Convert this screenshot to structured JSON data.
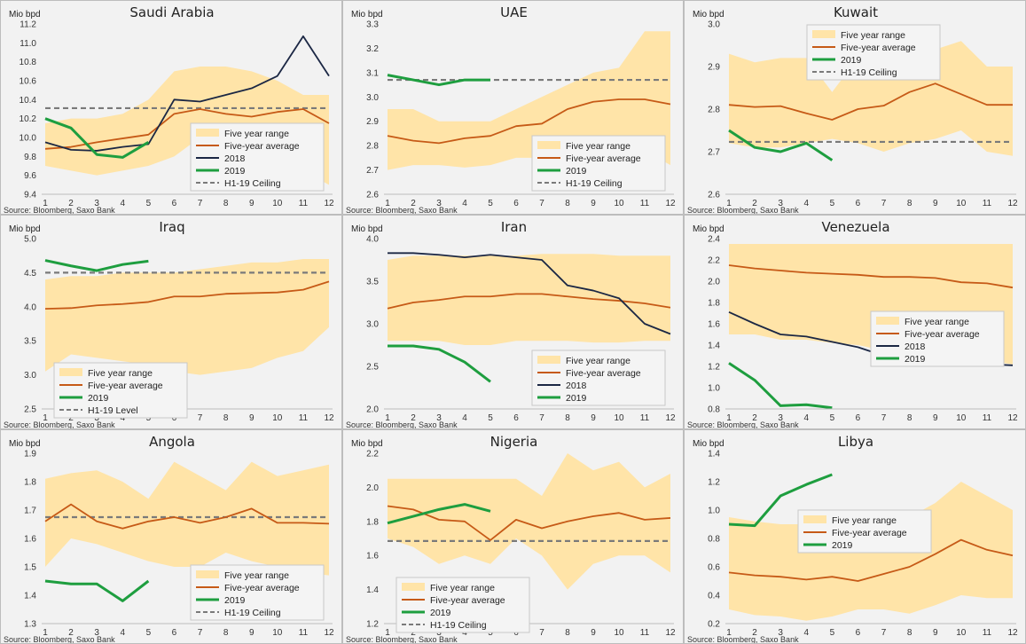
{
  "colors": {
    "range": "#ffe4a8",
    "avg": "#c65a17",
    "y2018": "#1b2744",
    "y2019": "#1e9e3f",
    "ceiling": "#7a7a7a"
  },
  "charts": [
    {
      "title": "Saudi Arabia",
      "ylabel": "Mio bpd",
      "ylim": [
        9.4,
        11.2
      ],
      "yticks": [
        "9.4",
        "9.6",
        "9.8",
        "10.0",
        "10.2",
        "10.4",
        "10.6",
        "10.8",
        "11.0",
        "11.2"
      ],
      "x": [
        1,
        2,
        3,
        4,
        5,
        6,
        7,
        8,
        9,
        10,
        11,
        12
      ],
      "source": "Source: Bloomberg, Saxo Bank",
      "legend": {
        "pos": "bottom-right",
        "entries": [
          {
            "key": "range",
            "label": "Five year range"
          },
          {
            "key": "avg",
            "label": "Five-year average"
          },
          {
            "key": "y2018",
            "label": "2018"
          },
          {
            "key": "y2019",
            "label": "2019"
          },
          {
            "key": "ceiling",
            "label": "H1-19 Ceiling"
          }
        ]
      },
      "range_low": [
        9.7,
        9.65,
        9.6,
        9.65,
        9.7,
        9.8,
        10.0,
        10.0,
        9.95,
        9.95,
        9.65,
        9.5
      ],
      "range_high": [
        10.15,
        10.2,
        10.2,
        10.25,
        10.4,
        10.7,
        10.75,
        10.75,
        10.7,
        10.6,
        10.45,
        10.45
      ],
      "avg": [
        9.88,
        9.9,
        9.95,
        9.99,
        10.03,
        10.25,
        10.3,
        10.25,
        10.22,
        10.27,
        10.3,
        10.15
      ],
      "y2018": [
        9.95,
        9.87,
        9.86,
        9.9,
        9.93,
        10.4,
        10.38,
        10.45,
        10.52,
        10.65,
        11.07,
        10.65
      ],
      "y2019": [
        10.2,
        10.1,
        9.82,
        9.79,
        9.95
      ],
      "ceiling": 10.31
    },
    {
      "title": "UAE",
      "ylabel": "Mio bpd",
      "ylim": [
        2.6,
        3.3
      ],
      "yticks": [
        "2.6",
        "2.7",
        "2.8",
        "2.9",
        "3.0",
        "3.1",
        "3.2",
        "3.3"
      ],
      "x": [
        1,
        2,
        3,
        4,
        5,
        6,
        7,
        8,
        9,
        10,
        11,
        12
      ],
      "source": "Source: Bloomberg, Saxo Bank",
      "legend": {
        "pos": "bottom-right",
        "entries": [
          {
            "key": "range",
            "label": "Five year range"
          },
          {
            "key": "avg",
            "label": "Five-year average"
          },
          {
            "key": "y2019",
            "label": "2019"
          },
          {
            "key": "ceiling",
            "label": "H1-19 Ceiling"
          }
        ]
      },
      "range_low": [
        2.7,
        2.72,
        2.72,
        2.71,
        2.72,
        2.75,
        2.75,
        2.78,
        2.82,
        2.8,
        2.78,
        2.72
      ],
      "range_high": [
        2.95,
        2.95,
        2.9,
        2.9,
        2.9,
        2.95,
        3.0,
        3.05,
        3.1,
        3.12,
        3.27,
        3.27
      ],
      "avg": [
        2.84,
        2.82,
        2.81,
        2.83,
        2.84,
        2.88,
        2.89,
        2.95,
        2.98,
        2.99,
        2.99,
        2.97
      ],
      "y2019": [
        3.09,
        3.07,
        3.05,
        3.07,
        3.07
      ],
      "ceiling": 3.07
    },
    {
      "title": "Kuwait",
      "ylabel": "Mio bpd",
      "ylim": [
        2.6,
        3.0
      ],
      "yticks": [
        "2.6",
        "2.7",
        "2.8",
        "2.9",
        "3.0"
      ],
      "x": [
        1,
        2,
        3,
        4,
        5,
        6,
        7,
        8,
        9,
        10,
        11,
        12
      ],
      "source": "Source: Bloomberg, Saxo Bank",
      "legend": {
        "pos": "top-center",
        "entries": [
          {
            "key": "range",
            "label": "Five year range"
          },
          {
            "key": "avg",
            "label": "Five-year average"
          },
          {
            "key": "y2019",
            "label": "2019"
          },
          {
            "key": "ceiling",
            "label": "H1-19 Ceiling"
          }
        ]
      },
      "range_low": [
        2.72,
        2.71,
        2.71,
        2.72,
        2.73,
        2.72,
        2.7,
        2.72,
        2.73,
        2.75,
        2.7,
        2.69
      ],
      "range_high": [
        2.93,
        2.91,
        2.92,
        2.92,
        2.84,
        2.92,
        2.92,
        2.94,
        2.94,
        2.96,
        2.9,
        2.9
      ],
      "avg": [
        2.81,
        2.805,
        2.807,
        2.79,
        2.775,
        2.8,
        2.808,
        2.84,
        2.86,
        2.835,
        2.81,
        2.81
      ],
      "y2019": [
        2.75,
        2.71,
        2.7,
        2.72,
        2.68
      ],
      "ceiling": 2.723
    },
    {
      "title": "Iraq",
      "ylabel": "Mio bpd",
      "ylim": [
        2.5,
        5.0
      ],
      "yticks": [
        "2.5",
        "3.0",
        "3.5",
        "4.0",
        "4.5",
        "5.0"
      ],
      "x": [
        1,
        2,
        3,
        4,
        5,
        6,
        7,
        8,
        9,
        10,
        11,
        12
      ],
      "source": "Source: Bloomberg,  Saxo Bank",
      "legend": {
        "pos": "bottom-left",
        "entries": [
          {
            "key": "range",
            "label": "Five year range"
          },
          {
            "key": "avg",
            "label": "Five-year average"
          },
          {
            "key": "y2019",
            "label": "2019"
          },
          {
            "key": "ceiling",
            "label": "H1-19 Level"
          }
        ]
      },
      "range_low": [
        3.05,
        3.3,
        3.25,
        3.2,
        3.15,
        3.05,
        3.0,
        3.05,
        3.1,
        3.25,
        3.35,
        3.7
      ],
      "range_high": [
        4.4,
        4.45,
        4.45,
        4.5,
        4.5,
        4.5,
        4.55,
        4.6,
        4.65,
        4.65,
        4.7,
        4.7
      ],
      "avg": [
        3.97,
        3.98,
        4.02,
        4.04,
        4.07,
        4.15,
        4.15,
        4.19,
        4.2,
        4.21,
        4.25,
        4.37
      ],
      "y2019": [
        4.68,
        4.6,
        4.53,
        4.62,
        4.67
      ],
      "ceiling": 4.5
    },
    {
      "title": "Iran",
      "ylabel": "Mio bpd",
      "ylim": [
        2.0,
        4.0
      ],
      "yticks": [
        "2.0",
        "2.5",
        "3.0",
        "3.5",
        "4.0"
      ],
      "x": [
        1,
        2,
        3,
        4,
        5,
        6,
        7,
        8,
        9,
        10,
        11,
        12
      ],
      "source": "Source: Bloomberg, Saxo Bank",
      "legend": {
        "pos": "bottom-right",
        "entries": [
          {
            "key": "range",
            "label": "Five year range"
          },
          {
            "key": "avg",
            "label": "Five-year average"
          },
          {
            "key": "y2018",
            "label": "2018"
          },
          {
            "key": "y2019",
            "label": "2019"
          }
        ]
      },
      "range_low": [
        2.8,
        2.8,
        2.8,
        2.75,
        2.75,
        2.8,
        2.8,
        2.8,
        2.78,
        2.78,
        2.8,
        2.8
      ],
      "range_high": [
        3.75,
        3.8,
        3.8,
        3.8,
        3.8,
        3.8,
        3.82,
        3.82,
        3.82,
        3.8,
        3.8,
        3.8
      ],
      "avg": [
        3.18,
        3.25,
        3.28,
        3.32,
        3.32,
        3.35,
        3.35,
        3.32,
        3.29,
        3.27,
        3.24,
        3.19
      ],
      "y2018": [
        3.83,
        3.83,
        3.81,
        3.78,
        3.81,
        3.78,
        3.75,
        3.45,
        3.39,
        3.3,
        3.0,
        2.88
      ],
      "y2019": [
        2.74,
        2.74,
        2.7,
        2.55,
        2.32
      ]
    },
    {
      "title": "Venezuela",
      "ylabel": "Mio bpd",
      "ylim": [
        0.8,
        2.4
      ],
      "yticks": [
        "0.8",
        "1.0",
        "1.2",
        "1.4",
        "1.6",
        "1.8",
        "2.0",
        "2.2",
        "2.4"
      ],
      "x": [
        1,
        2,
        3,
        4,
        5,
        6,
        7,
        8,
        9,
        10,
        11,
        12
      ],
      "source": "Source: Bloomberg, Saxo Bank",
      "legend": {
        "pos": "right",
        "entries": [
          {
            "key": "range",
            "label": "Five year range"
          },
          {
            "key": "avg",
            "label": "Five-year average"
          },
          {
            "key": "y2018",
            "label": "2018"
          },
          {
            "key": "y2019",
            "label": "2019"
          }
        ]
      },
      "range_low": [
        1.5,
        1.5,
        1.45,
        1.45,
        1.42,
        1.4,
        1.35,
        1.35,
        1.3,
        1.25,
        1.25,
        1.22
      ],
      "range_high": [
        2.35,
        2.35,
        2.35,
        2.35,
        2.35,
        2.35,
        2.35,
        2.35,
        2.35,
        2.35,
        2.35,
        2.35
      ],
      "avg": [
        2.15,
        2.12,
        2.1,
        2.08,
        2.07,
        2.06,
        2.04,
        2.04,
        2.03,
        1.99,
        1.98,
        1.94
      ],
      "y2018": [
        1.71,
        1.6,
        1.5,
        1.48,
        1.43,
        1.38,
        1.3,
        1.32,
        1.25,
        1.21,
        1.22,
        1.21
      ],
      "y2019": [
        1.23,
        1.07,
        0.83,
        0.84,
        0.81
      ]
    },
    {
      "title": "Angola",
      "ylabel": "Mio bpd",
      "ylim": [
        1.3,
        1.9
      ],
      "yticks": [
        "1.3",
        "1.4",
        "1.5",
        "1.6",
        "1.7",
        "1.8",
        "1.9"
      ],
      "x": [
        1,
        2,
        3,
        4,
        5,
        6,
        7,
        8,
        9,
        10,
        11,
        12
      ],
      "source": "Source: Bloomberg, Saxo Bank",
      "legend": {
        "pos": "bottom-right",
        "entries": [
          {
            "key": "range",
            "label": "Five year range"
          },
          {
            "key": "avg",
            "label": "Five-year average"
          },
          {
            "key": "y2019",
            "label": "2019"
          },
          {
            "key": "ceiling",
            "label": "H1-19 Ceiling"
          }
        ]
      },
      "range_low": [
        1.5,
        1.6,
        1.58,
        1.55,
        1.52,
        1.5,
        1.5,
        1.55,
        1.52,
        1.5,
        1.48,
        1.47
      ],
      "range_high": [
        1.81,
        1.83,
        1.84,
        1.8,
        1.74,
        1.87,
        1.82,
        1.77,
        1.87,
        1.82,
        1.84,
        1.86
      ],
      "avg": [
        1.66,
        1.72,
        1.66,
        1.635,
        1.66,
        1.675,
        1.655,
        1.675,
        1.705,
        1.655,
        1.655,
        1.652
      ],
      "y2019": [
        1.45,
        1.44,
        1.44,
        1.38,
        1.45
      ],
      "ceiling": 1.675
    },
    {
      "title": "Nigeria",
      "ylabel": "Mio bpd",
      "ylim": [
        1.2,
        2.2
      ],
      "yticks": [
        "1.2",
        "1.4",
        "1.6",
        "1.8",
        "2.0",
        "2.2"
      ],
      "x": [
        1,
        2,
        3,
        4,
        5,
        6,
        7,
        8,
        9,
        10,
        11,
        12
      ],
      "source": "Source: Bloomberg, Saxo Bank",
      "legend": {
        "pos": "bottom-left",
        "entries": [
          {
            "key": "range",
            "label": "Five year range"
          },
          {
            "key": "avg",
            "label": "Five-year average"
          },
          {
            "key": "y2019",
            "label": "2019"
          },
          {
            "key": "ceiling",
            "label": "H1-19 Ceiling"
          }
        ]
      },
      "range_low": [
        1.7,
        1.65,
        1.55,
        1.6,
        1.55,
        1.7,
        1.6,
        1.4,
        1.55,
        1.6,
        1.6,
        1.5
      ],
      "range_high": [
        2.05,
        2.05,
        2.05,
        2.05,
        2.05,
        2.05,
        1.95,
        2.2,
        2.1,
        2.15,
        2.0,
        2.08
      ],
      "avg": [
        1.89,
        1.87,
        1.81,
        1.8,
        1.69,
        1.81,
        1.76,
        1.8,
        1.83,
        1.85,
        1.81,
        1.82
      ],
      "y2019": [
        1.79,
        1.83,
        1.87,
        1.9,
        1.86
      ],
      "ceiling": 1.685
    },
    {
      "title": "Libya",
      "ylabel": "Mio bpd",
      "ylim": [
        0.2,
        1.4
      ],
      "yticks": [
        "0.2",
        "0.4",
        "0.6",
        "0.8",
        "1.0",
        "1.2",
        "1.4"
      ],
      "x": [
        1,
        2,
        3,
        4,
        5,
        6,
        7,
        8,
        9,
        10,
        11,
        12
      ],
      "source": "Source: Bloomberg, Saxo Bank",
      "legend": {
        "pos": "center",
        "entries": [
          {
            "key": "range",
            "label": "Five year range"
          },
          {
            "key": "avg",
            "label": "Five-year average"
          },
          {
            "key": "y2019",
            "label": "2019"
          }
        ]
      },
      "range_low": [
        0.3,
        0.26,
        0.25,
        0.22,
        0.25,
        0.3,
        0.3,
        0.27,
        0.33,
        0.4,
        0.38,
        0.38
      ],
      "range_high": [
        0.95,
        0.92,
        0.9,
        0.9,
        0.9,
        0.92,
        0.95,
        0.95,
        1.05,
        1.2,
        1.1,
        1.0
      ],
      "avg": [
        0.56,
        0.54,
        0.53,
        0.51,
        0.53,
        0.5,
        0.55,
        0.6,
        0.69,
        0.79,
        0.72,
        0.68
      ],
      "y2019": [
        0.9,
        0.89,
        1.1,
        1.18,
        1.25
      ]
    }
  ]
}
